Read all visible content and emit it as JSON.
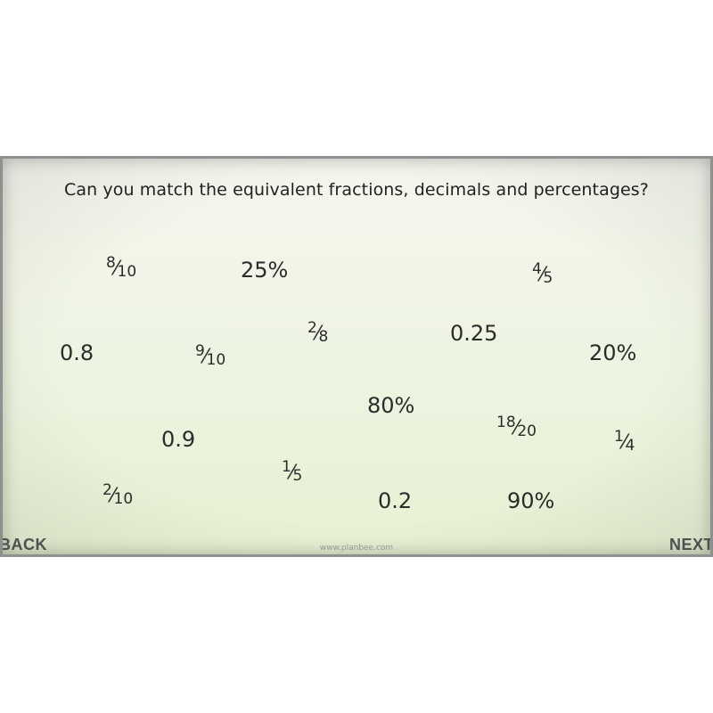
{
  "question": "Can you match the equivalent fractions, decimals and percentages?",
  "items": {
    "frac_8_10": {
      "num": "8",
      "slash": "⁄",
      "den": "10"
    },
    "pct_25": "25%",
    "frac_4_5": {
      "num": "4",
      "slash": "⁄",
      "den": "5"
    },
    "dec_0_8": "0.8",
    "frac_9_10": {
      "num": "9",
      "slash": "⁄",
      "den": "10"
    },
    "frac_2_8": {
      "num": "2",
      "slash": "⁄",
      "den": "8"
    },
    "dec_0_25": "0.25",
    "pct_20": "20%",
    "pct_80": "80%",
    "frac_18_20": {
      "num": "18",
      "slash": "⁄",
      "den": "20"
    },
    "frac_1_4": {
      "num": "1",
      "slash": "⁄",
      "den": "4"
    },
    "dec_0_9": "0.9",
    "frac_1_5": {
      "num": "1",
      "slash": "⁄",
      "den": "5"
    },
    "frac_2_10": {
      "num": "2",
      "slash": "⁄",
      "den": "10"
    },
    "dec_0_2": "0.2",
    "pct_90": "90%"
  },
  "nav": {
    "back_label": "BACK",
    "next_label": "NEXT"
  },
  "footer": "www.planbee.com"
}
